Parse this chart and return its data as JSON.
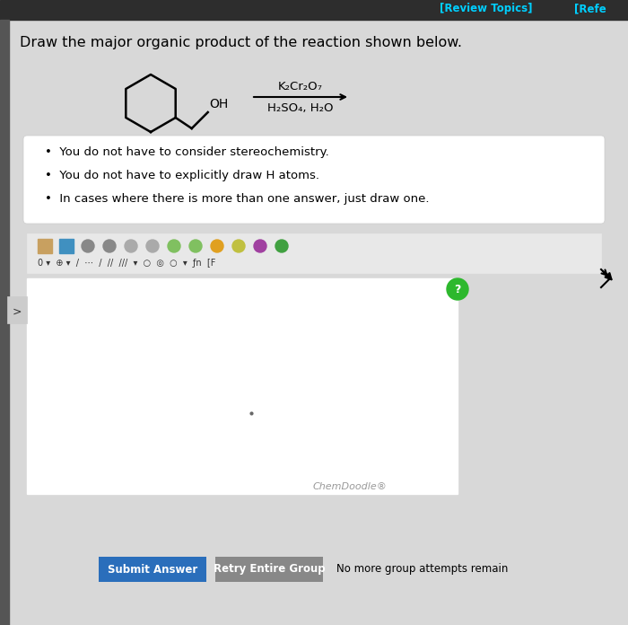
{
  "bg_color": "#d8d8d8",
  "header_color": "#2d2d2d",
  "header_text_color": "#00cfff",
  "header_text": "[Review Topics]",
  "header_text2": "[Refe",
  "main_question": "Draw the major organic product of the reaction shown below.",
  "bullet_points": [
    "You do not have to consider stereochemistry.",
    "You do not have to explicitly draw H atoms.",
    "In cases where there is more than one answer, just draw one."
  ],
  "reagent_line1": "K₂Cr₂O₇",
  "reagent_line2": "H₂SO₄, H₂O",
  "chemdoodle_text": "ChemDoodle®",
  "submit_btn_text": "Submit Answer",
  "retry_btn_text": "Retry Entire Group",
  "no_attempt_text": "No more group attempts remain",
  "submit_btn_color": "#2a6ebb",
  "retry_btn_color": "#888888",
  "white_box_bg": "#f0f0f0",
  "toolbar_bg": "#e8e8e8",
  "drawing_area_bg": "#efefef",
  "left_bar_color": "#555555"
}
